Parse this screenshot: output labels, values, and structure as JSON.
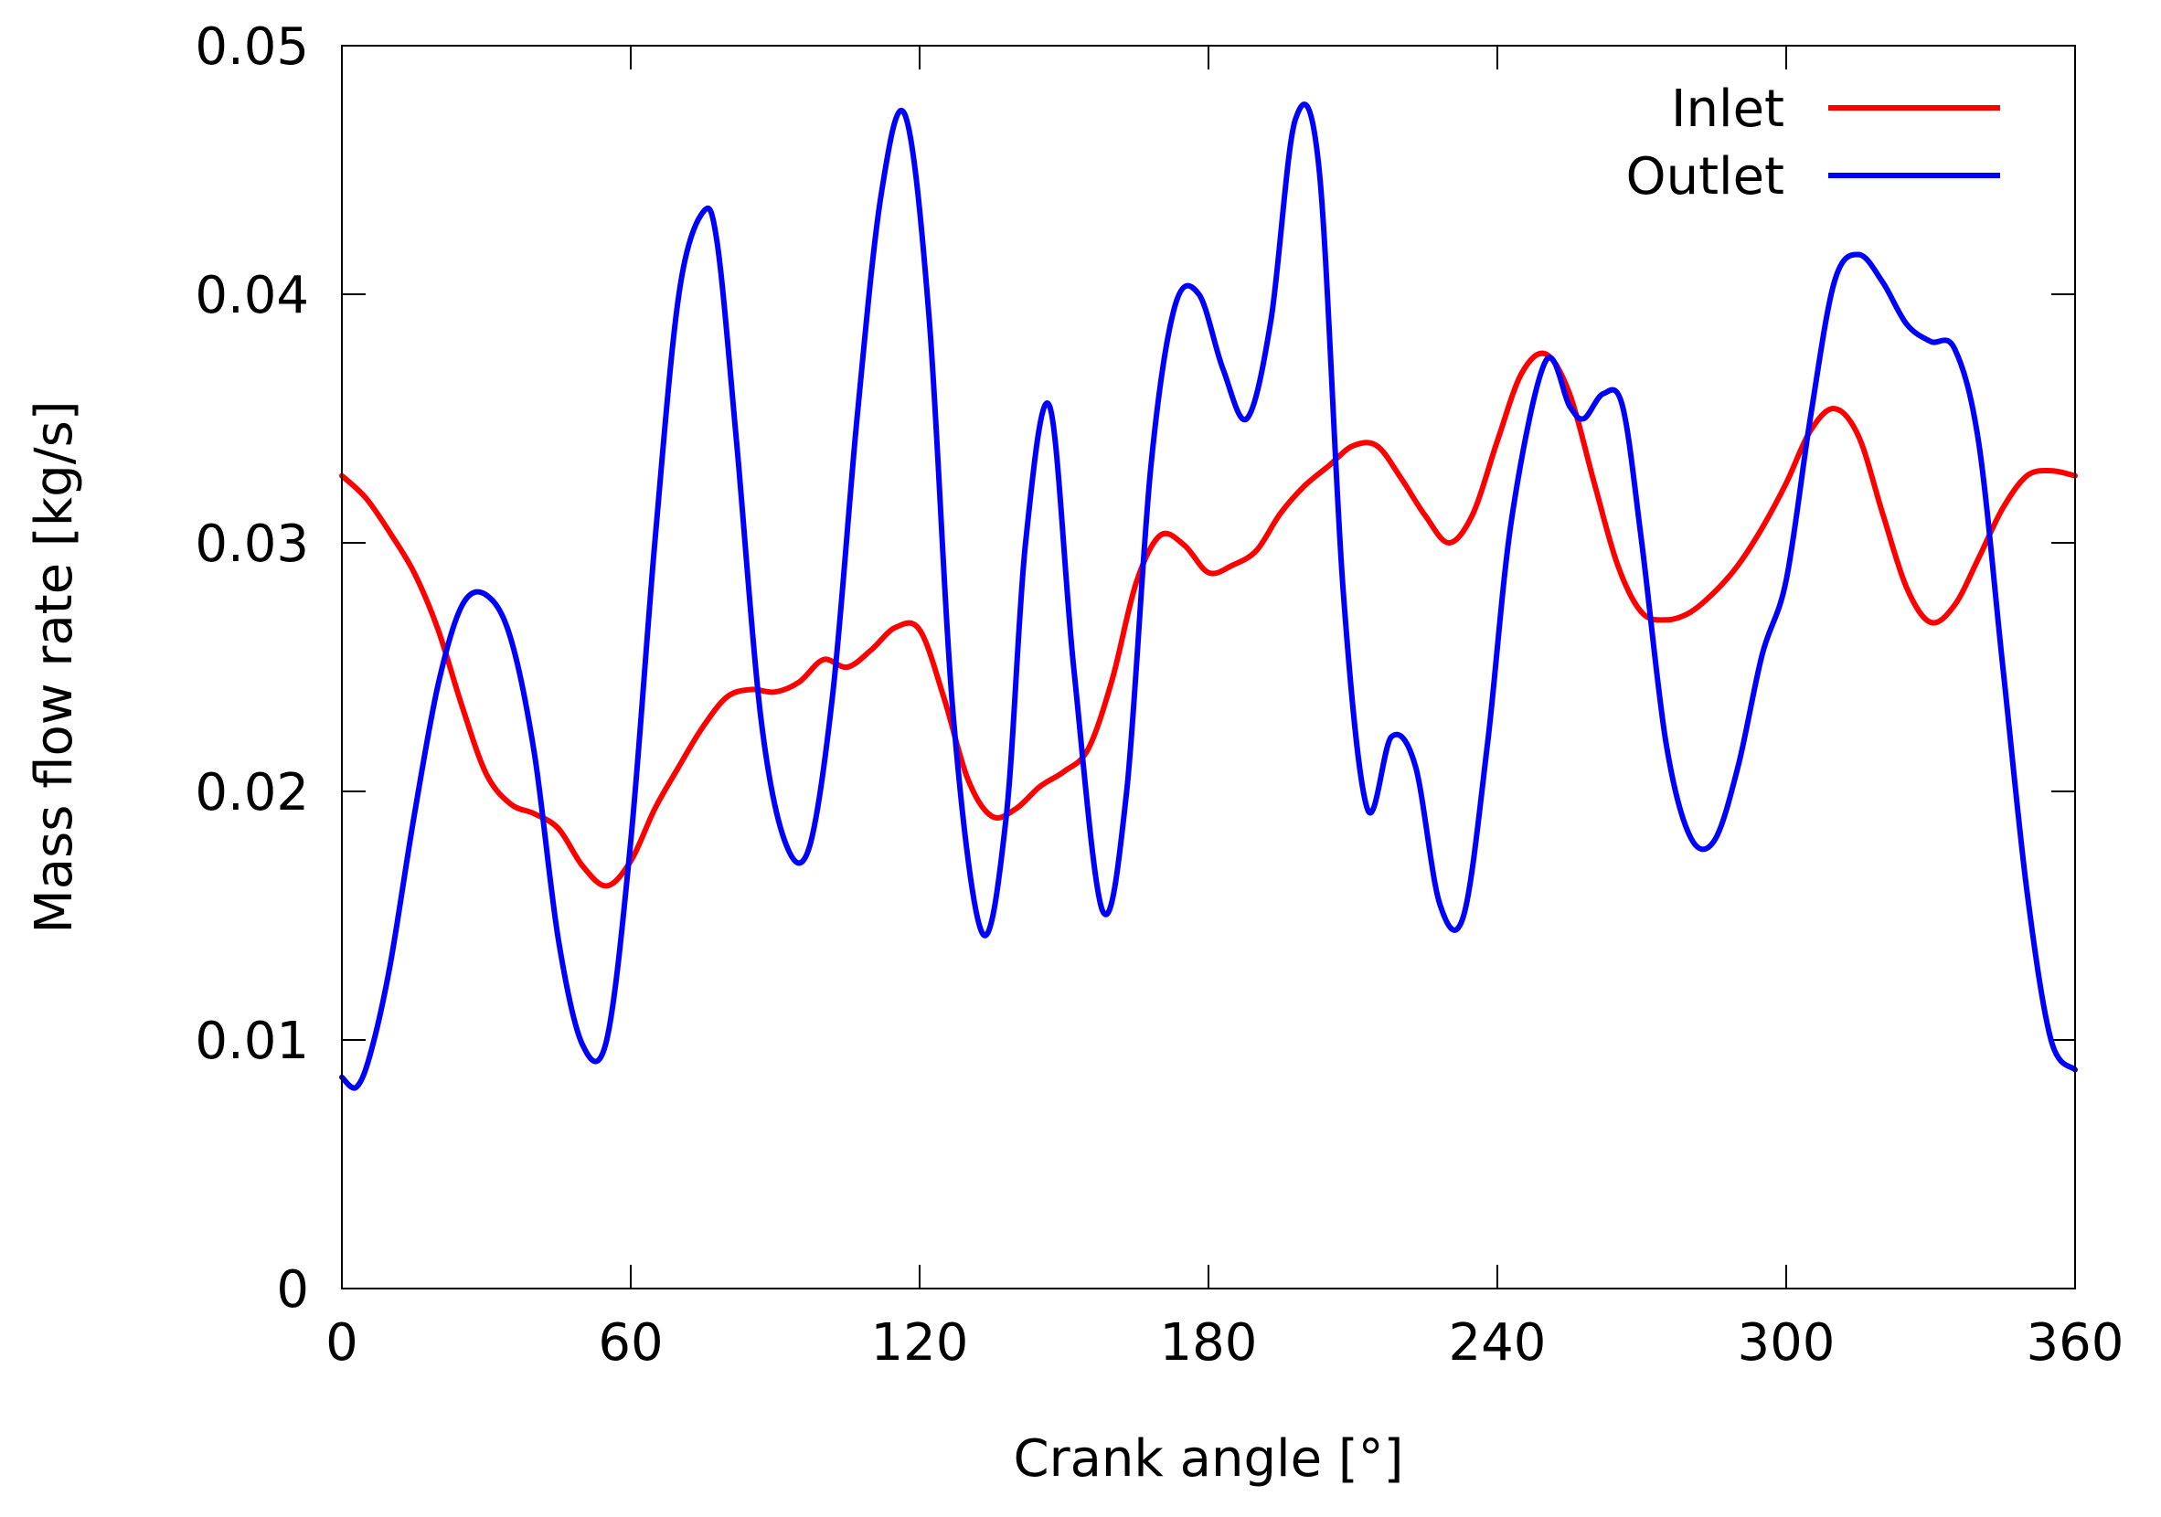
{
  "chart_data": {
    "type": "line",
    "xlabel": "Crank angle [°]",
    "ylabel": "Mass flow rate [kg/s]",
    "xlim": [
      0,
      360
    ],
    "ylim": [
      0,
      0.05
    ],
    "xticks": [
      0,
      60,
      120,
      180,
      240,
      300,
      360
    ],
    "xtick_labels": [
      "0",
      "60",
      "120",
      "180",
      "240",
      "300",
      "360"
    ],
    "yticks": [
      0,
      0.01,
      0.02,
      0.03,
      0.04,
      0.05
    ],
    "ytick_labels": [
      "0",
      "0.01",
      "0.02",
      "0.03",
      "0.04",
      "0.05"
    ],
    "grid": false,
    "legend_position": "top-right",
    "series": [
      {
        "name": "Inlet",
        "color": "#ff0000",
        "x": [
          0,
          5,
          10,
          15,
          20,
          25,
          30,
          35,
          40,
          45,
          50,
          55,
          60,
          65,
          70,
          75,
          80,
          85,
          90,
          95,
          100,
          105,
          110,
          115,
          120,
          125,
          130,
          135,
          140,
          145,
          150,
          155,
          160,
          165,
          170,
          175,
          180,
          185,
          190,
          195,
          200,
          205,
          210,
          215,
          220,
          225,
          230,
          235,
          240,
          245,
          250,
          255,
          260,
          265,
          270,
          275,
          280,
          285,
          290,
          295,
          300,
          305,
          310,
          315,
          320,
          325,
          330,
          335,
          340,
          345,
          350,
          355,
          360
        ],
        "y": [
          0.0327,
          0.0318,
          0.0304,
          0.0288,
          0.0265,
          0.0234,
          0.0207,
          0.0195,
          0.0191,
          0.0185,
          0.017,
          0.0162,
          0.0172,
          0.0193,
          0.021,
          0.0226,
          0.0238,
          0.0241,
          0.024,
          0.0244,
          0.0253,
          0.025,
          0.0257,
          0.0266,
          0.0265,
          0.0238,
          0.0205,
          0.019,
          0.0193,
          0.0202,
          0.0208,
          0.0217,
          0.0245,
          0.0284,
          0.0303,
          0.0299,
          0.0288,
          0.0291,
          0.0297,
          0.0312,
          0.0323,
          0.0331,
          0.0339,
          0.0339,
          0.0326,
          0.0311,
          0.03,
          0.0312,
          0.0341,
          0.0368,
          0.0376,
          0.036,
          0.0325,
          0.0291,
          0.0272,
          0.0269,
          0.0272,
          0.028,
          0.0291,
          0.0306,
          0.0324,
          0.0345,
          0.0354,
          0.0343,
          0.0312,
          0.0282,
          0.0268,
          0.0275,
          0.0294,
          0.0314,
          0.0327,
          0.0329,
          0.0327
        ]
      },
      {
        "name": "Outlet",
        "color": "#0000ff",
        "x": [
          0,
          3,
          6,
          10,
          15,
          20,
          25,
          30,
          35,
          40,
          45,
          50,
          55,
          60,
          65,
          70,
          75,
          78,
          82,
          87,
          92,
          97,
          102,
          107,
          112,
          117,
          122,
          127,
          133,
          138,
          142,
          147,
          152,
          158,
          163,
          168,
          173,
          178,
          183,
          188,
          193,
          198,
          203,
          208,
          213,
          218,
          223,
          228,
          233,
          238,
          243,
          250,
          255,
          258,
          262,
          266,
          270,
          275,
          280,
          285,
          290,
          295,
          300,
          305,
          310,
          315,
          320,
          325,
          330,
          335,
          340,
          345,
          350,
          355,
          360
        ],
        "y": [
          0.0085,
          0.0081,
          0.0095,
          0.013,
          0.019,
          0.0243,
          0.0275,
          0.0279,
          0.0262,
          0.0215,
          0.014,
          0.0098,
          0.01,
          0.018,
          0.03,
          0.04,
          0.0433,
          0.042,
          0.034,
          0.023,
          0.018,
          0.0177,
          0.024,
          0.035,
          0.044,
          0.0472,
          0.039,
          0.023,
          0.0143,
          0.019,
          0.03,
          0.0355,
          0.025,
          0.0152,
          0.02,
          0.033,
          0.0395,
          0.04,
          0.037,
          0.035,
          0.039,
          0.047,
          0.045,
          0.028,
          0.0193,
          0.0222,
          0.021,
          0.0155,
          0.015,
          0.022,
          0.031,
          0.0373,
          0.0355,
          0.035,
          0.036,
          0.0355,
          0.03,
          0.022,
          0.0182,
          0.018,
          0.021,
          0.0255,
          0.0285,
          0.035,
          0.0405,
          0.0416,
          0.0405,
          0.0388,
          0.0381,
          0.0378,
          0.034,
          0.025,
          0.016,
          0.01,
          0.0088
        ]
      }
    ]
  }
}
